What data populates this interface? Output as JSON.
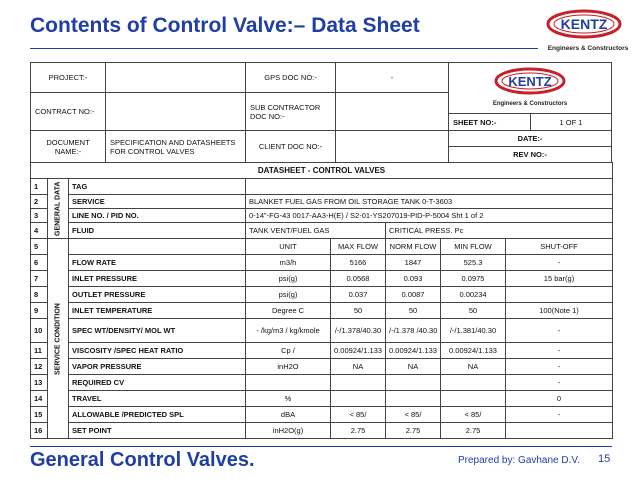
{
  "title": "Contents of Control Valve:– Data Sheet",
  "logo": {
    "name": "KENTZ",
    "tagline": "Engineers & Constructors"
  },
  "header": {
    "project_label": "PROJECT:-",
    "gps_label": "GPS DOC NO:-",
    "gps_value": "-",
    "contract_label": "CONTRACT NO:-",
    "subcontractor_label": "SUB CONTRACTOR DOC NO:-",
    "sheet_label": "SHEET NO:-",
    "sheet_value": "1  OF 1",
    "document_label": "DOCUMENT NAME:-",
    "document_value": "SPECIFICATION AND DATASHEETS FOR CONTROL VALVES",
    "client_label": "CLIENT DOC NO:-",
    "date_label": "DATE:-",
    "rev_label": "REV NO:-"
  },
  "table": {
    "title": "DATASHEET  - CONTROL VALVES",
    "groups": [
      "GENERAL DATA",
      "SERVICE CONDITION"
    ],
    "rows": [
      {
        "num": "1",
        "label": "TAG",
        "cells": [
          null
        ]
      },
      {
        "num": "2",
        "label": "SERVICE",
        "cells": [
          "BLANKET FUEL GAS FROM OIL STORAGE TANK 0-T-3603"
        ]
      },
      {
        "num": "3",
        "label": "LINE NO. / PID NO.",
        "cells": [
          "0-14\"-FG-43   0017-AA3-H(E) / S2-01-YS207019-PID-P-5004   Sht  1  of  2"
        ]
      },
      {
        "num": "4",
        "label": "FLUID",
        "cells": [
          "TANK VENT/FUEL GAS",
          "CRITICAL PRESS.  Pc"
        ]
      },
      {
        "num": "5",
        "label": null,
        "cells": [
          "UNIT",
          "MAX FLOW",
          "NORM FLOW",
          "MIN FLOW",
          "SHUT-OFF"
        ]
      },
      {
        "num": "6",
        "label": "FLOW RATE",
        "cells": [
          "m3/h",
          "5166",
          "1847",
          "525.3",
          "-"
        ]
      },
      {
        "num": "7",
        "label": "INLET PRESSURE",
        "cells": [
          "psi(g)",
          "0.0568",
          "0.093",
          "0.0975",
          "15 bar(g)"
        ]
      },
      {
        "num": "8",
        "label": "OUTLET PRESSURE",
        "cells": [
          "psi(g)",
          "0.037",
          "0.0087",
          "0.00234",
          null
        ]
      },
      {
        "num": "9",
        "label": "INLET TEMPERATURE",
        "cells": [
          "Degree C",
          "50",
          "50",
          "50",
          "100(Note 1)"
        ]
      },
      {
        "num": "10",
        "label": "SPEC WT/DENSITY/ MOL WT",
        "cells": [
          "- /kg/m3 / kg/kmole",
          "/-/1.378/40.30",
          "/-/1.378 /40.30",
          "/-/1.381/40.30",
          "-"
        ]
      },
      {
        "num": "11",
        "label": "VISCOSITY /SPEC HEAT RATIO",
        "cells": [
          "Cp /",
          "0.00924/1.133",
          "0.00924/1.133",
          "0.00924/1.133",
          "-"
        ]
      },
      {
        "num": "12",
        "label": "VAPOR PRESSURE",
        "cells": [
          "inH2O",
          "NA",
          "NA",
          "NA",
          "-"
        ]
      },
      {
        "num": "13",
        "label": "REQUIRED CV",
        "cells": [
          null,
          null,
          null,
          null,
          "-"
        ]
      },
      {
        "num": "14",
        "label": "TRAVEL",
        "cells": [
          "%",
          null,
          null,
          null,
          "0"
        ]
      },
      {
        "num": "15",
        "label": "ALLOWABLE /PREDICTED  SPL",
        "cells": [
          "dBA",
          "< 85/",
          "< 85/",
          "< 85/",
          "-"
        ]
      },
      {
        "num": "16",
        "label": "SET POINT",
        "cells": [
          "inH2O(g)",
          "2.75",
          "2.75",
          "2.75",
          null
        ]
      }
    ]
  },
  "footer": {
    "title": "General Control Valves.",
    "author": "Prepared by: Gavhane D.V.",
    "page": "15"
  }
}
